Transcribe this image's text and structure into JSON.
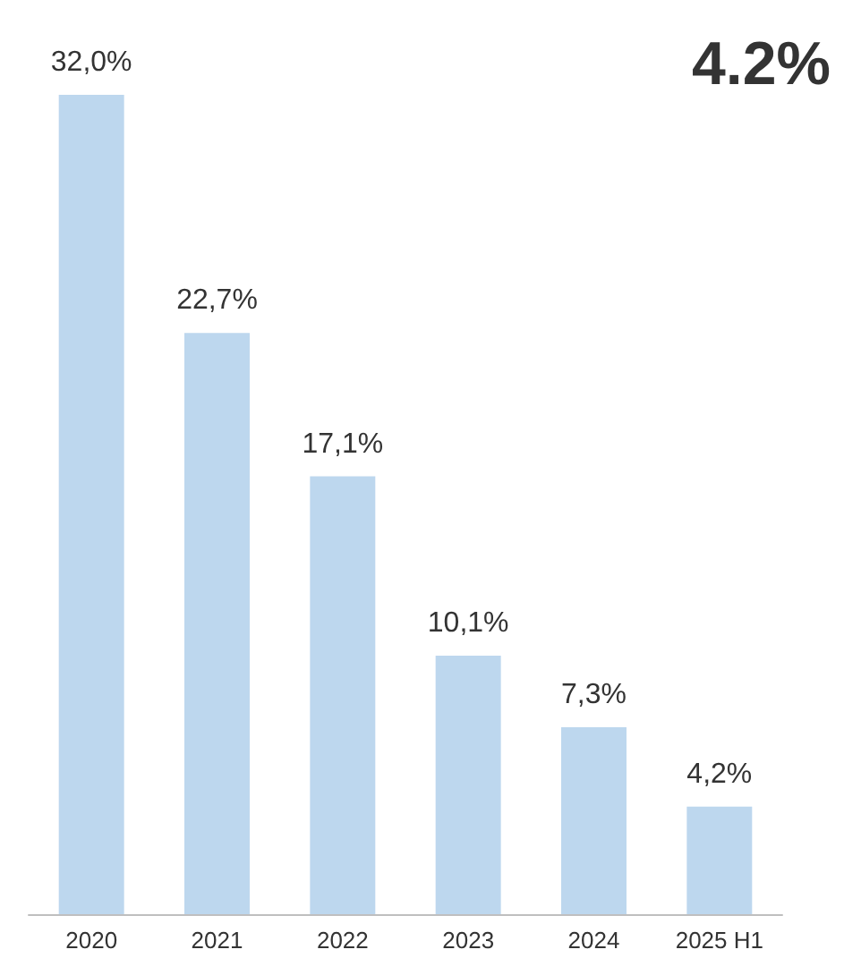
{
  "chart_data": {
    "type": "bar",
    "title": "4.2%",
    "categories": [
      "2020",
      "2021",
      "2022",
      "2023",
      "2024",
      "2025 H1"
    ],
    "values": [
      32.0,
      22.7,
      17.1,
      10.1,
      7.3,
      4.2
    ],
    "value_labels": [
      "32,0%",
      "22,7%",
      "17,1%",
      "10,1%",
      "7,3%",
      "4,2%"
    ],
    "color": "#bdd7ee"
  }
}
